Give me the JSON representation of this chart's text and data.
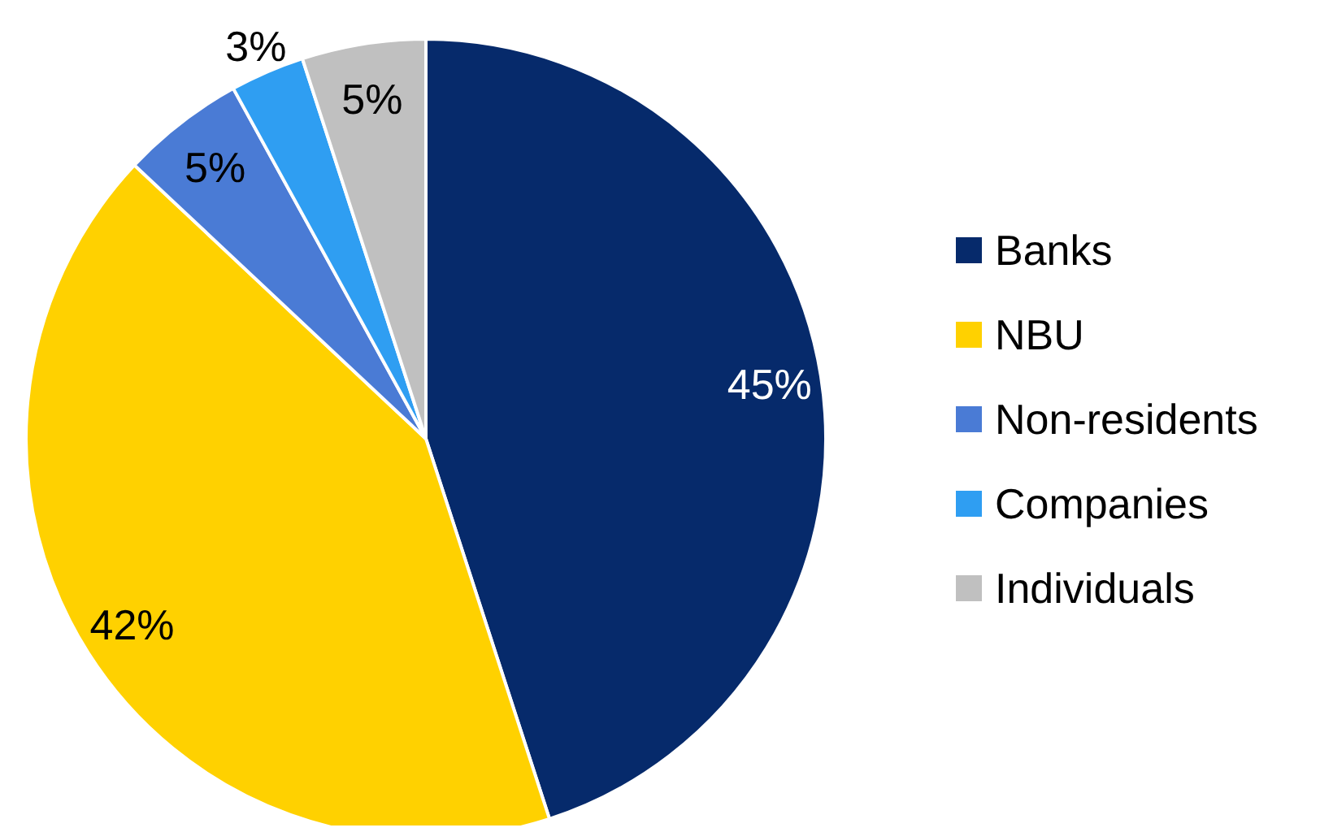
{
  "chart_data": {
    "type": "pie",
    "categories": [
      "Banks",
      "NBU",
      "Non-residents",
      "Companies",
      "Individuals"
    ],
    "values": [
      45,
      42,
      5,
      3,
      5
    ],
    "colors": [
      "#062a6b",
      "#ffd100",
      "#4a7bd5",
      "#2f9ef2",
      "#c0c0c0"
    ],
    "value_labels": [
      "45%",
      "42%",
      "5%",
      "3%",
      "5%"
    ],
    "legend": "right"
  }
}
